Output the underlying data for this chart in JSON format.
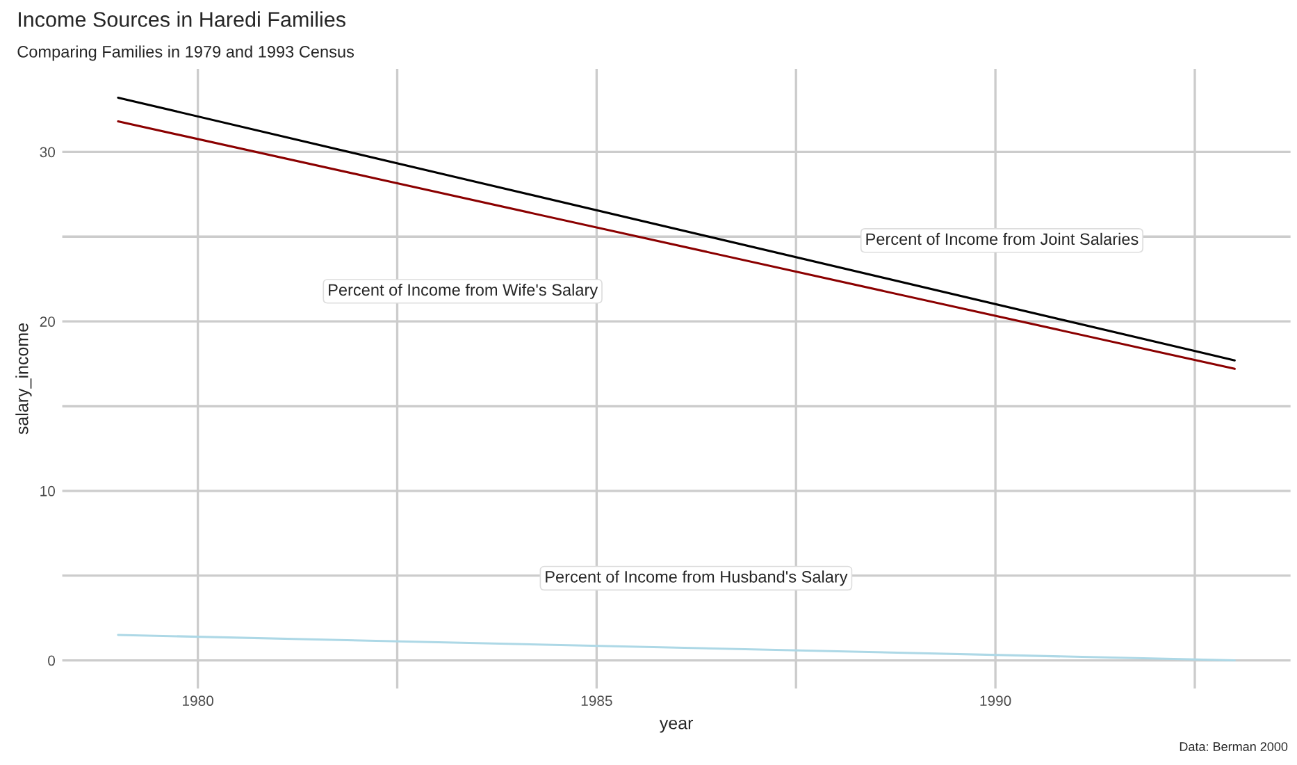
{
  "chart_data": {
    "type": "line",
    "title": "Income Sources in Haredi Families",
    "subtitle": "Comparing Families in 1979 and 1993 Census",
    "xlabel": "year",
    "ylabel": "salary_income",
    "x": [
      1979,
      1993
    ],
    "series": [
      {
        "color": "#000000",
        "values": [
          33.2,
          17.7
        ]
      },
      {
        "color": "#8b0000",
        "values": [
          31.8,
          17.2
        ]
      },
      {
        "color": "#add8e6",
        "values": [
          1.5,
          0.0
        ]
      }
    ],
    "xlim": [
      1978.3,
      1993.7
    ],
    "xticks": [
      1980,
      {
        "value": 1982.5,
        "label": null
      },
      1985,
      {
        "value": 1987.5,
        "label": null
      },
      1990,
      {
        "value": 1992.5,
        "label": null
      }
    ],
    "ylim": [
      -1.66,
      34.9
    ],
    "yticks": [
      0,
      {
        "value": 5,
        "label": null
      },
      10,
      {
        "value": 15,
        "label": null
      },
      20,
      {
        "value": 25,
        "label": null
      },
      30
    ],
    "grid": true,
    "line_style": "solid",
    "marker": "none",
    "annotations": [
      "Percent of Income from Joint Salaries",
      "Percent of Income from Wife's Salary",
      "Percent of Income from Husband's Salary",
      "Data: Berman 2000"
    ]
  }
}
